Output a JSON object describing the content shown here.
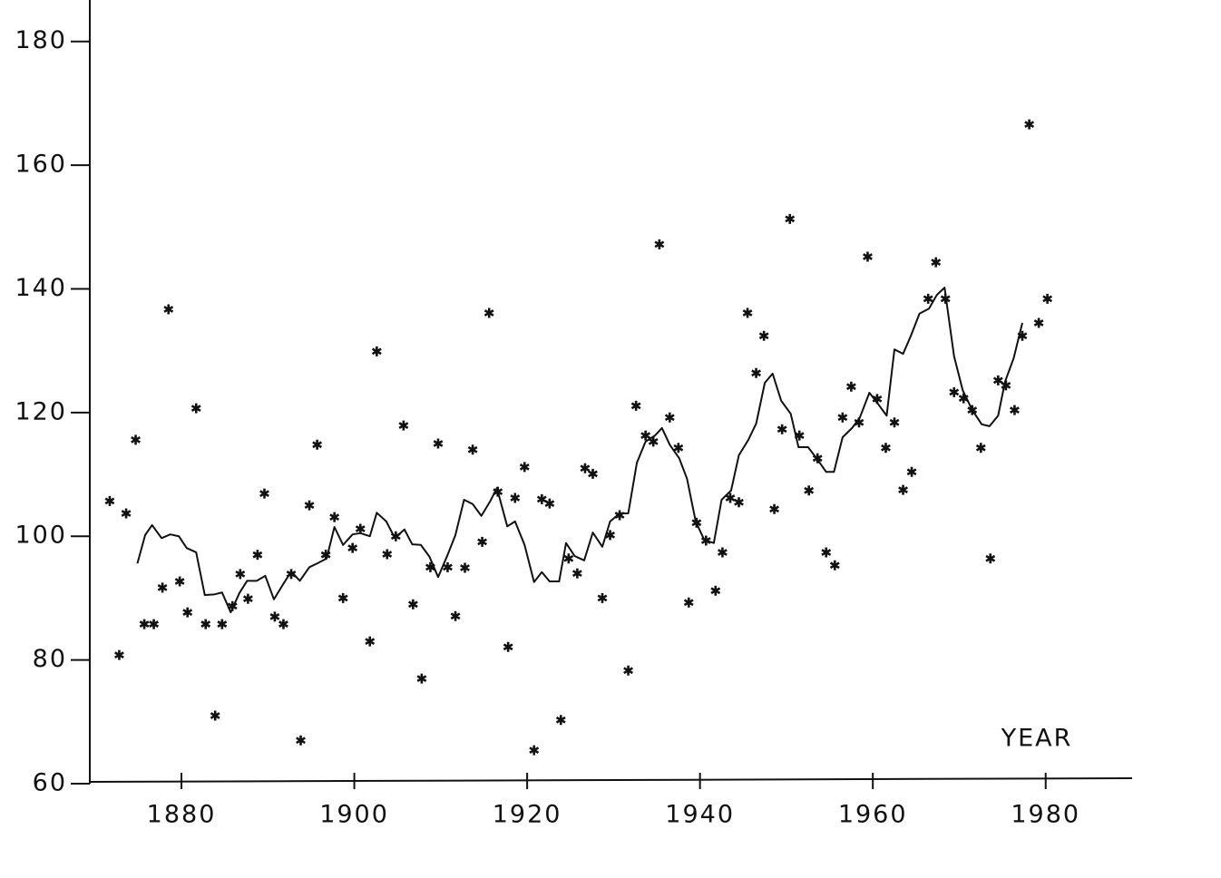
{
  "chart_data": {
    "type": "scatter",
    "axis_label": "YEAR",
    "xlim": [
      1869.5,
      1990
    ],
    "ylim": [
      60,
      186.7
    ],
    "xticks": [
      1880,
      1900,
      1920,
      1940,
      1960,
      1980
    ],
    "yticks": [
      60,
      80,
      100,
      120,
      140,
      160,
      180
    ],
    "grid": false,
    "series": [
      {
        "type": "scatter",
        "color": "#111111",
        "x": [
          1871.7,
          1872.8,
          1873.6,
          1874.7,
          1875.7,
          1876.8,
          1877.8,
          1878.5,
          1879.8,
          1880.7,
          1881.7,
          1882.8,
          1883.9,
          1884.7,
          1885.9,
          1886.8,
          1887.7,
          1888.8,
          1889.6,
          1890.8,
          1891.8,
          1892.7,
          1893.8,
          1894.8,
          1895.7,
          1896.7,
          1897.7,
          1898.7,
          1899.8,
          1900.7,
          1901.8,
          1902.6,
          1903.8,
          1904.8,
          1905.7,
          1906.8,
          1907.8,
          1908.8,
          1909.7,
          1910.8,
          1911.7,
          1912.8,
          1913.7,
          1914.8,
          1915.6,
          1916.6,
          1917.8,
          1918.6,
          1919.7,
          1920.8,
          1921.7,
          1922.6,
          1923.9,
          1924.8,
          1925.8,
          1926.7,
          1927.6,
          1928.7,
          1929.6,
          1930.7,
          1931.7,
          1932.6,
          1933.7,
          1934.6,
          1935.3,
          1936.5,
          1937.5,
          1938.7,
          1939.6,
          1940.7,
          1941.8,
          1942.6,
          1943.5,
          1944.5,
          1945.5,
          1946.5,
          1947.4,
          1948.6,
          1949.5,
          1950.4,
          1951.5,
          1952.6,
          1953.6,
          1954.6,
          1955.6,
          1956.5,
          1957.5,
          1958.4,
          1959.4,
          1960.5,
          1961.5,
          1962.5,
          1963.5,
          1964.5,
          1966.4,
          1967.3,
          1968.4,
          1969.4,
          1970.5,
          1971.5,
          1972.5,
          1973.6,
          1974.5,
          1975.4,
          1976.4,
          1977.3,
          1978.1,
          1979.2,
          1980.2
        ],
        "values": [
          105.7,
          80.8,
          103.7,
          115.6,
          85.8,
          85.8,
          91.7,
          136.7,
          92.7,
          87.7,
          120.7,
          85.8,
          71,
          85.8,
          88.7,
          93.9,
          89.9,
          97,
          106.9,
          87,
          85.8,
          93.9,
          67,
          105,
          114.8,
          97,
          103.1,
          90,
          98.1,
          101.2,
          83,
          129.9,
          97.1,
          100,
          117.9,
          89,
          77,
          95,
          115,
          95,
          87.1,
          94.9,
          114,
          99.1,
          136.1,
          107.2,
          82.1,
          106.2,
          111.2,
          65.4,
          106,
          105.3,
          70.3,
          96.4,
          94,
          111,
          110.1,
          90,
          100.2,
          103.4,
          78.3,
          121.1,
          116.3,
          115.3,
          147.2,
          119.2,
          114.3,
          89.3,
          102.2,
          99.3,
          91.2,
          97.4,
          106.2,
          105.5,
          136.1,
          126.4,
          132.4,
          104.4,
          117.3,
          151.3,
          116.3,
          107.4,
          112.6,
          97.4,
          95.3,
          119.2,
          124.2,
          118.4,
          145.2,
          122.2,
          114.3,
          118.4,
          107.5,
          110.4,
          138.4,
          144.3,
          138.4,
          123.3,
          122.3,
          120.4,
          114.3,
          96.4,
          125.2,
          124.4,
          120.4,
          132.4,
          166.6,
          134.5,
          138.4
        ]
      },
      {
        "type": "line",
        "color": "#111111",
        "x": [
          1874.9,
          1875.8,
          1876.6,
          1877.7,
          1878.7,
          1879.7,
          1880.6,
          1881.7,
          1882.7,
          1883.8,
          1884.7,
          1885.7,
          1886.7,
          1887.6,
          1888.7,
          1889.7,
          1890.7,
          1891.7,
          1892.7,
          1893.7,
          1894.8,
          1895.7,
          1896.8,
          1897.7,
          1898.7,
          1899.8,
          1900.7,
          1901.8,
          1902.6,
          1903.7,
          1904.7,
          1905.8,
          1906.7,
          1907.7,
          1908.7,
          1909.7,
          1910.8,
          1911.7,
          1912.7,
          1913.7,
          1914.7,
          1915.7,
          1916.5,
          1917.7,
          1918.6,
          1919.7,
          1920.8,
          1921.7,
          1922.6,
          1923.7,
          1924.5,
          1925.5,
          1926.6,
          1927.6,
          1928.7,
          1929.6,
          1930.7,
          1931.7,
          1932.7,
          1933.7,
          1934.8,
          1935.6,
          1936.5,
          1937.6,
          1938.5,
          1939.5,
          1940.5,
          1941.6,
          1942.5,
          1943.6,
          1944.5,
          1945.6,
          1946.5,
          1947.5,
          1948.4,
          1949.4,
          1950.5,
          1951.4,
          1952.5,
          1953.5,
          1954.6,
          1955.5,
          1956.5,
          1957.6,
          1958.5,
          1959.6,
          1960.6,
          1961.6,
          1962.5,
          1963.5,
          1964.4,
          1965.4,
          1966.5,
          1967.4,
          1968.3,
          1969.4,
          1970.4,
          1971.5,
          1972.6,
          1973.5,
          1974.5,
          1975.3,
          1976.3,
          1977.3
        ],
        "values": [
          95.6,
          100.2,
          101.8,
          99.7,
          100.3,
          100,
          98.1,
          97.4,
          90.5,
          90.6,
          90.9,
          87.7,
          90.8,
          92.8,
          92.8,
          93.6,
          89.8,
          92.1,
          94.3,
          92.8,
          95,
          95.6,
          96.4,
          101.5,
          98.6,
          100.3,
          100.5,
          100,
          103.8,
          102.4,
          99.7,
          101.1,
          98.7,
          98.6,
          96.7,
          93.4,
          97,
          100.2,
          105.9,
          105.2,
          103.3,
          105.6,
          107.8,
          101.6,
          102.4,
          98.6,
          92.6,
          94.2,
          92.7,
          92.7,
          98.9,
          96.8,
          96.1,
          100.6,
          98.3,
          102.4,
          103.7,
          103.7,
          111.9,
          115.3,
          116.3,
          117.5,
          114.8,
          112.6,
          109.3,
          102.4,
          99.4,
          98.9,
          105.9,
          107.4,
          113.1,
          115.6,
          118.2,
          124.8,
          126.3,
          121.9,
          119.8,
          114.4,
          114.4,
          112.6,
          110.4,
          110.4,
          116,
          117.5,
          119.2,
          123.2,
          121.4,
          119.5,
          130.2,
          129.5,
          132.4,
          136,
          136.8,
          139,
          140.2,
          129.1,
          123.6,
          120.4,
          118.1,
          117.8,
          119.5,
          125,
          128.8,
          134.5
        ]
      }
    ]
  }
}
